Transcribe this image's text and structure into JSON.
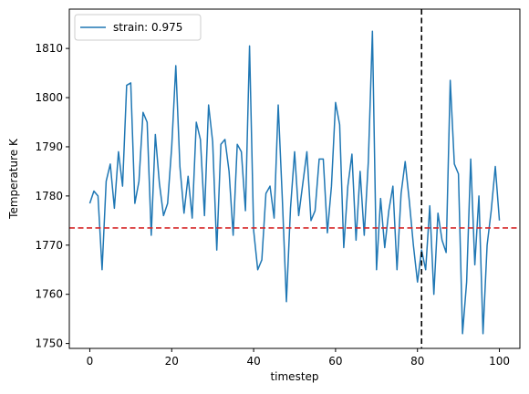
{
  "chart_data": {
    "type": "line",
    "xlabel": "timestep",
    "ylabel": "Temperature K",
    "xlim": [
      -5,
      105
    ],
    "ylim": [
      1749,
      1818
    ],
    "xticks": [
      0,
      20,
      40,
      60,
      80,
      100
    ],
    "yticks": [
      1750,
      1760,
      1770,
      1780,
      1790,
      1800,
      1810
    ],
    "grid": false,
    "legend_position": "top-left",
    "series": [
      {
        "name": "strain: 0.975",
        "color": "#1f77b4",
        "x": [
          0,
          1,
          2,
          3,
          4,
          5,
          6,
          7,
          8,
          9,
          10,
          11,
          12,
          13,
          14,
          15,
          16,
          17,
          18,
          19,
          20,
          21,
          22,
          23,
          24,
          25,
          26,
          27,
          28,
          29,
          30,
          31,
          32,
          33,
          34,
          35,
          36,
          37,
          38,
          39,
          40,
          41,
          42,
          43,
          44,
          45,
          46,
          47,
          48,
          49,
          50,
          51,
          52,
          53,
          54,
          55,
          56,
          57,
          58,
          59,
          60,
          61,
          62,
          63,
          64,
          65,
          66,
          67,
          68,
          69,
          70,
          71,
          72,
          73,
          74,
          75,
          76,
          77,
          78,
          79,
          80,
          81,
          82,
          83,
          84,
          85,
          86,
          87,
          88,
          89,
          90,
          91,
          92,
          93,
          94,
          95,
          96,
          97,
          98,
          99,
          100
        ],
        "y": [
          1778.5,
          1781,
          1780,
          1765,
          1783,
          1786.5,
          1777.5,
          1789,
          1782,
          1802.5,
          1803,
          1778.5,
          1783,
          1797,
          1795,
          1772,
          1792.5,
          1782.5,
          1776,
          1778.5,
          1790,
          1806.5,
          1786,
          1776.5,
          1784,
          1775.5,
          1795,
          1791.5,
          1776,
          1798.5,
          1791,
          1769,
          1790.5,
          1791.5,
          1785,
          1772,
          1790.5,
          1789,
          1777,
          1810.5,
          1773,
          1765,
          1767,
          1780.5,
          1782,
          1775.5,
          1798.5,
          1779.5,
          1758.5,
          1777.5,
          1789,
          1776,
          1782.5,
          1789,
          1775,
          1777,
          1787.5,
          1787.5,
          1772.5,
          1782,
          1799,
          1794.5,
          1769.5,
          1782,
          1788.5,
          1771,
          1785,
          1772,
          1787,
          1813.5,
          1765,
          1779.5,
          1769.5,
          1777,
          1782,
          1765,
          1780.5,
          1787,
          1779,
          1770,
          1762.5,
          1769,
          1765,
          1778,
          1760,
          1776.5,
          1771,
          1768.5,
          1803.5,
          1786.5,
          1784.5,
          1752,
          1762.5,
          1787.5,
          1766,
          1780,
          1752,
          1770,
          1777,
          1786,
          1775
        ]
      }
    ],
    "reference_lines": [
      {
        "orientation": "horizontal",
        "value": 1773.5,
        "color": "#d62728",
        "style": "dashed"
      },
      {
        "orientation": "vertical",
        "value": 81,
        "color": "#000000",
        "style": "dashed"
      }
    ]
  }
}
